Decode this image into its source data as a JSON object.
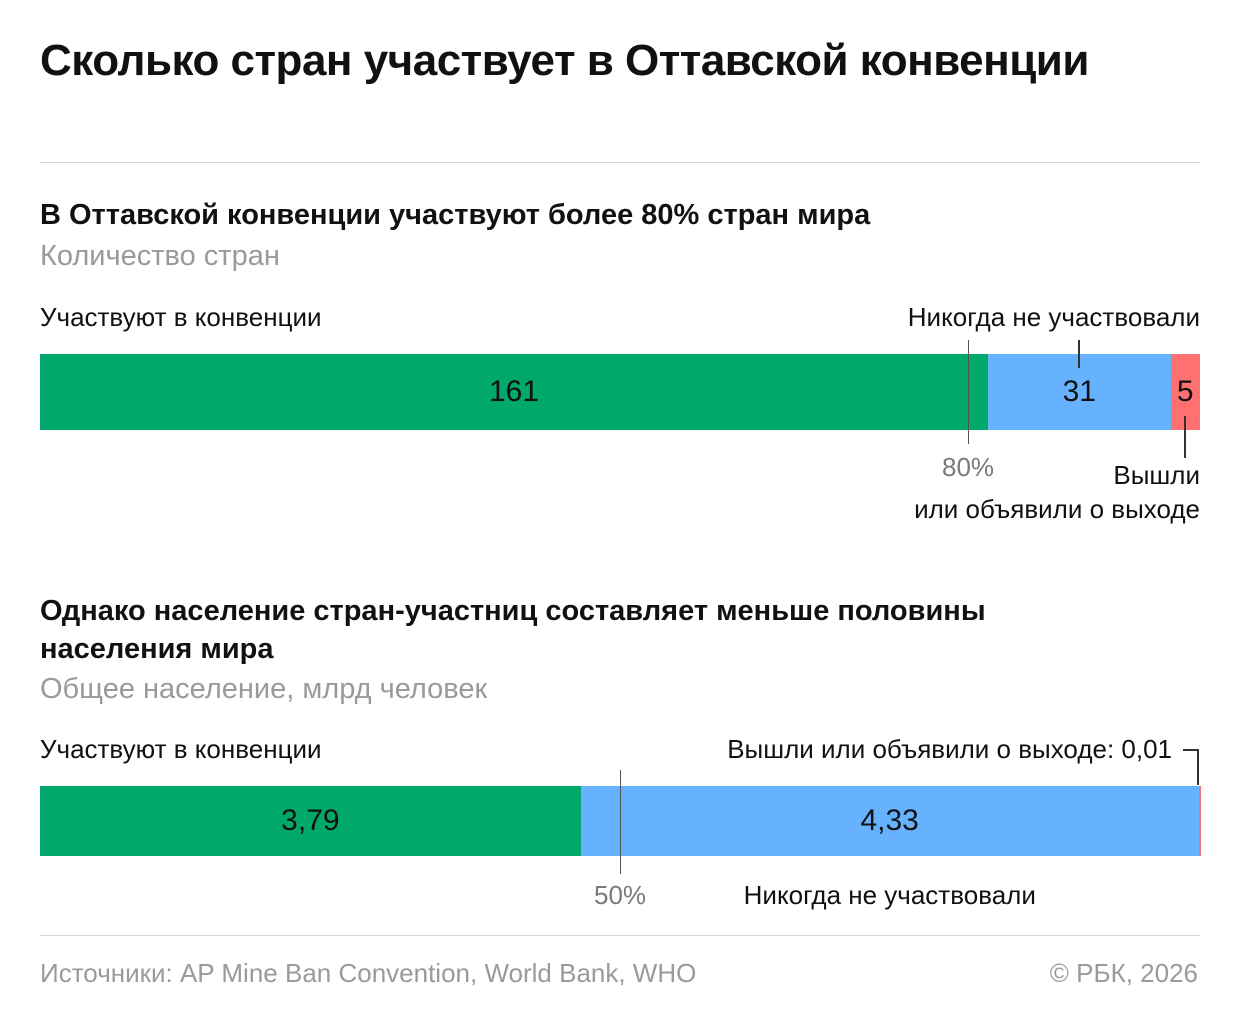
{
  "title": "Сколько стран участвует в Оттавской конвенции",
  "section1": {
    "heading": "В Оттавской конвенции участвуют более 80% стран мира",
    "subheading": "Количество стран",
    "label_participate": "Участвуют в конвенции",
    "label_never": "Никогда не участвовали",
    "label_withdrew_line1": "Вышли",
    "label_withdrew_line2": "или объявили о выходе",
    "marker_label": "80%",
    "value_labels": [
      "161",
      "31",
      "5"
    ]
  },
  "section2": {
    "heading": "Однако население стран-участниц составляет меньше половины населения мира",
    "subheading": "Общее население, млрд человек",
    "label_participate": "Участвуют в конвенции",
    "label_withdrew": "Вышли или объявили о выходе: 0,01",
    "label_never": "Никогда не участвовали",
    "marker_label": "50%",
    "value_labels": [
      "3,79",
      "4,33"
    ]
  },
  "footer": {
    "source": "Источники: AP Mine Ban Convention, World Bank, WHO",
    "copyright": "© РБК, 2026"
  },
  "colors": {
    "participate": "#00a86b",
    "never": "#66b2ff",
    "withdrew": "#ff7070"
  },
  "chart_data": [
    {
      "type": "bar",
      "orientation": "horizontal-stacked",
      "categories": [
        "Участвуют в конвенции",
        "Никогда не участвовали",
        "Вышли или объявили о выходе"
      ],
      "values": [
        161,
        31,
        5
      ],
      "reference": 0.8
    },
    {
      "type": "bar",
      "orientation": "horizontal-stacked",
      "categories": [
        "Участвуют в конвенции",
        "Никогда не участвовали",
        "Вышли или объявили о выходе"
      ],
      "values": [
        3.79,
        4.33,
        0.01
      ],
      "reference": 0.5
    }
  ]
}
